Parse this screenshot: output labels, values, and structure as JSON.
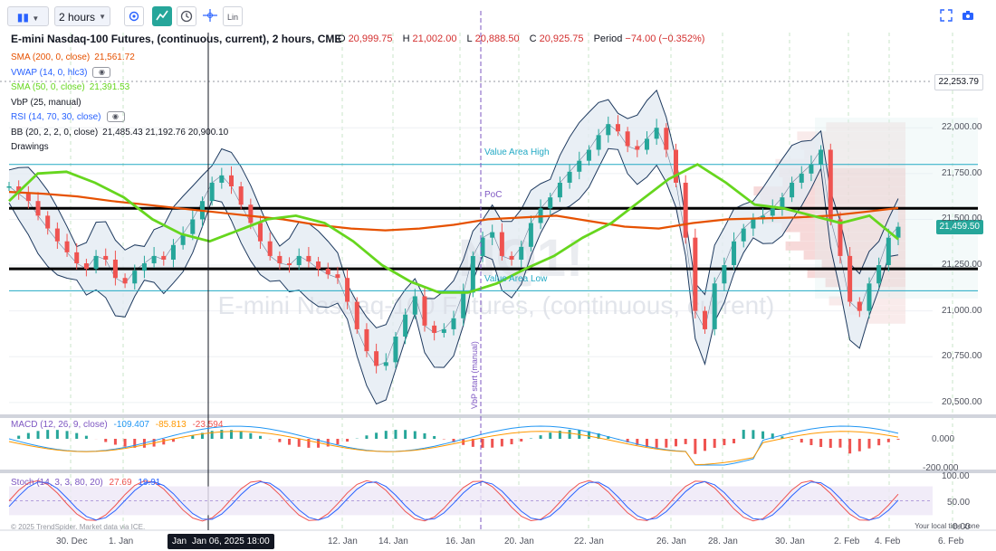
{
  "toolbar": {
    "bars_icon": "candles-icon",
    "interval": "2 hours",
    "lin_label": "Lin"
  },
  "header": {
    "title": "E-mini Nasdaq-100 Futures, (continuous, current), 2 hours, CME",
    "open_label": "O",
    "open": "20,999.75",
    "high_label": "H",
    "high": "21,002.00",
    "low_label": "L",
    "low": "20,888.50",
    "close_label": "C",
    "close": "20,925.75",
    "period_label": "Period",
    "period": "−74.00 (−0.352%)"
  },
  "legend": [
    {
      "name": "SMA (200, 0, close)",
      "value": "21,561.72",
      "color": "#e65100"
    },
    {
      "name": "VWAP (14, 0, hlc3)",
      "value": "",
      "color": "#2962ff",
      "eye": true
    },
    {
      "name": "SMA (50, 0, close)",
      "value": "21,391.53",
      "color": "#66d61e"
    },
    {
      "name": "VbP (25, manual)",
      "value": "",
      "color": "#131722"
    },
    {
      "name": "RSI (14, 70, 30, close)",
      "value": "",
      "color": "#2962ff",
      "eye": true
    },
    {
      "name": "BB (20, 2, 2, 0, close)",
      "value": "21,485.43  21,192.76  20,900.10",
      "color": "#131722"
    },
    {
      "name": "Drawings",
      "value": "",
      "color": "#131722"
    }
  ],
  "watermark": {
    "big": "NQ1!",
    "name": "E-mini Nasdaq-100 Futures, (continuous, current)"
  },
  "annotations": {
    "value_area_high": "Value Area High",
    "value_area_low": "Value Area Low",
    "poc": "PoC",
    "vbp_start": "VbP start (manual)"
  },
  "price_tags": {
    "top": "22,253.79",
    "last": "21,459.50"
  },
  "macd": {
    "label": "MACD (12, 26, 9, close)",
    "v1": "-109.407",
    "v2": "-85.813",
    "v3": "-23.594"
  },
  "stoch": {
    "label": "Stoch (14, 3, 3, 80, 20)",
    "v1": "27.69",
    "v2": "19.91"
  },
  "footer": {
    "copyright": "© 2025 TrendSpider. Market data via ICE.",
    "local_time": "Your local time zone",
    "crosshair_date": "Jan 06, 2025 18:00",
    "crosshair_stub": "Jan"
  },
  "chart_data": {
    "type": "candlestick",
    "x_ticks": [
      "30. Dec",
      "1. Jan",
      "12. Jan",
      "14. Jan",
      "16. Jan",
      "20. Jan",
      "22. Jan",
      "26. Jan",
      "28. Jan",
      "30. Jan",
      "2. Feb",
      "4. Feb",
      "6. Feb"
    ],
    "price_ticks": [
      "22,000.00",
      "21,750.00",
      "21,500.00",
      "21,250.00",
      "21,000.00",
      "20,750.00",
      "20,500.00"
    ],
    "ylim": [
      20450,
      22500
    ],
    "close_path": [
      21680,
      21640,
      21600,
      21520,
      21450,
      21380,
      21320,
      21260,
      21230,
      21300,
      21280,
      21180,
      21150,
      21220,
      21260,
      21300,
      21280,
      21360,
      21420,
      21500,
      21600,
      21700,
      21740,
      21680,
      21580,
      21480,
      21380,
      21300,
      21260,
      21250,
      21300,
      21270,
      21230,
      21200,
      21180,
      21050,
      20900,
      20780,
      20700,
      20720,
      20860,
      20980,
      21080,
      20920,
      20880,
      20900,
      20960,
      21100,
      21300,
      21400,
      21430,
      21300,
      21280,
      21350,
      21480,
      21560,
      21620,
      21700,
      21760,
      21820,
      21880,
      21960,
      22020,
      21980,
      21900,
      21880,
      21940,
      22000,
      21880,
      21700,
      21400,
      21000,
      20900,
      21150,
      21250,
      21380,
      21450,
      21500,
      21520,
      21560,
      21620,
      21700,
      21750,
      21800,
      21880,
      21500,
      21300,
      21050,
      21000,
      21150,
      21250,
      21400,
      21459.5
    ],
    "sma200": [
      21650,
      21640,
      21625,
      21600,
      21580,
      21560,
      21540,
      21520,
      21500,
      21470,
      21450,
      21440,
      21450,
      21470,
      21500,
      21510,
      21520,
      21490,
      21460,
      21450,
      21480,
      21500,
      21505,
      21510,
      21520,
      21540,
      21561.72
    ],
    "sma50": [
      21600,
      21750,
      21760,
      21700,
      21620,
      21500,
      21420,
      21380,
      21440,
      21500,
      21520,
      21480,
      21380,
      21250,
      21160,
      21100,
      21100,
      21150,
      21230,
      21300,
      21400,
      21480,
      21600,
      21720,
      21800,
      21700,
      21580,
      21560,
      21520,
      21480,
      21520,
      21391.53
    ],
    "bb": {
      "upper": "21,485.43",
      "middle": "21,192.76",
      "lower": "20,900.10"
    },
    "volume_area": {
      "high": 21800,
      "low": 21110,
      "poc": 21610
    },
    "hlines": [
      21560,
      21230
    ],
    "macd": {
      "values": [
        -109.407,
        -85.813,
        -23.594
      ],
      "ylim": [
        -200,
        100
      ],
      "ticks": [
        "0.000",
        "-200.000"
      ]
    },
    "stoch": {
      "values": [
        27.69,
        19.91
      ],
      "ticks": [
        "100.00",
        "50.00",
        "0.00"
      ],
      "bands": [
        80,
        20
      ]
    }
  },
  "colors": {
    "sma200": "#e65100",
    "sma50": "#66d61e",
    "bb": "#1e3a5f",
    "bb_fill": "#e4ebf3",
    "up": "#26a69a",
    "down": "#ef5350",
    "value_area": "#22a9c4",
    "last_tag": "#26a69a",
    "vbp_start": "#7e57c2"
  }
}
